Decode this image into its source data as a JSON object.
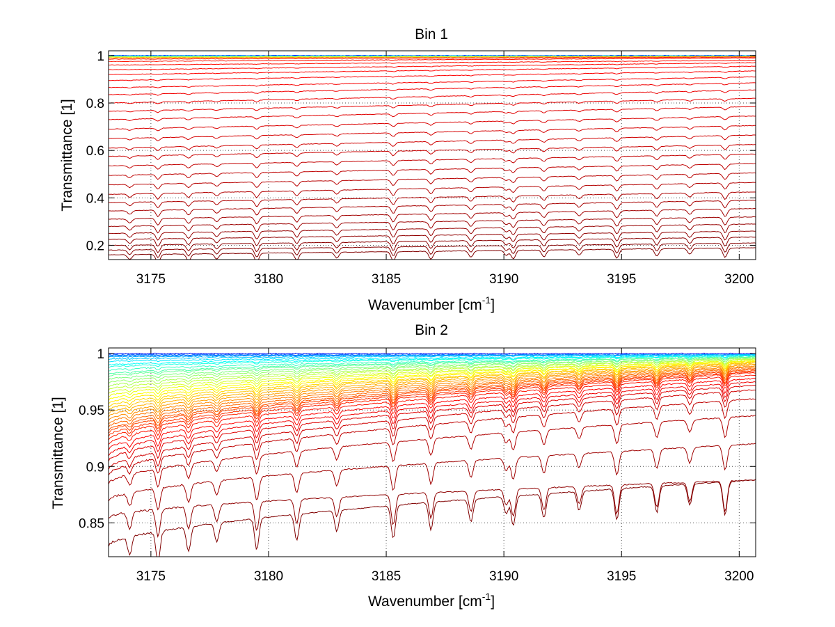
{
  "chart_data": [
    {
      "type": "line",
      "title": "Bin 1",
      "xlabel": "Wavenumber [cm",
      "xlabel_sup": "-1",
      "xlabel_end": "]",
      "ylabel": "Transmittance [1]",
      "xlim": [
        3173.2,
        3200.7
      ],
      "ylim": [
        0.14,
        1.02
      ],
      "xticks": [
        3175,
        3180,
        3185,
        3190,
        3195,
        3200
      ],
      "yticks": [
        0.2,
        0.4,
        0.6,
        0.8,
        1
      ],
      "ytick_labels": [
        "0.2",
        "0.4",
        "0.6",
        "0.8",
        "1"
      ],
      "grid": true,
      "n_series": 34,
      "series_start_end": [
        [
          1.0,
          1.0
        ],
        [
          0.999,
          0.999
        ],
        [
          0.997,
          0.998
        ],
        [
          0.995,
          0.997
        ],
        [
          0.993,
          0.996
        ],
        [
          0.99,
          0.995
        ],
        [
          0.985,
          0.993
        ],
        [
          0.975,
          0.99
        ],
        [
          0.96,
          0.98
        ],
        [
          0.94,
          0.97
        ],
        [
          0.92,
          0.955
        ],
        [
          0.895,
          0.935
        ],
        [
          0.865,
          0.91
        ],
        [
          0.835,
          0.885
        ],
        [
          0.8,
          0.855
        ],
        [
          0.765,
          0.82
        ],
        [
          0.73,
          0.785
        ],
        [
          0.69,
          0.745
        ],
        [
          0.65,
          0.705
        ],
        [
          0.61,
          0.665
        ],
        [
          0.575,
          0.625
        ],
        [
          0.535,
          0.585
        ],
        [
          0.495,
          0.545
        ],
        [
          0.455,
          0.505
        ],
        [
          0.415,
          0.465
        ],
        [
          0.38,
          0.425
        ],
        [
          0.345,
          0.39
        ],
        [
          0.31,
          0.355
        ],
        [
          0.28,
          0.32
        ],
        [
          0.25,
          0.29
        ],
        [
          0.225,
          0.26
        ],
        [
          0.2,
          0.235
        ],
        [
          0.18,
          0.21
        ],
        [
          0.16,
          0.19
        ]
      ],
      "absorption_lines": [
        3174.1,
        3175.3,
        3176.6,
        3177.8,
        3179.5,
        3181.2,
        3182.9,
        3185.3,
        3186.9,
        3188.6,
        3190.1,
        3190.4,
        3191.7,
        3193.2,
        3194.8,
        3196.5,
        3197.9,
        3199.4
      ],
      "colormap": "jet"
    },
    {
      "type": "line",
      "title": "Bin 2",
      "xlabel": "Wavenumber [cm",
      "xlabel_sup": "-1",
      "xlabel_end": "]",
      "ylabel": "Transmittance [1]",
      "xlim": [
        3173.2,
        3200.7
      ],
      "ylim": [
        0.82,
        1.005
      ],
      "xticks": [
        3175,
        3180,
        3185,
        3190,
        3195,
        3200
      ],
      "yticks": [
        0.85,
        0.9,
        0.95,
        1
      ],
      "ytick_labels": [
        "0.85",
        "0.9",
        "0.95",
        "1"
      ],
      "grid": true,
      "n_series": 40,
      "series_start_end": [
        [
          1.0,
          1.0
        ],
        [
          0.999,
          0.999
        ],
        [
          0.998,
          0.999
        ],
        [
          0.997,
          0.999
        ],
        [
          0.995,
          0.999
        ],
        [
          0.993,
          0.998
        ],
        [
          0.99,
          0.998
        ],
        [
          0.988,
          0.998
        ],
        [
          0.985,
          0.997
        ],
        [
          0.982,
          0.997
        ],
        [
          0.98,
          0.997
        ],
        [
          0.977,
          0.996
        ],
        [
          0.974,
          0.996
        ],
        [
          0.971,
          0.995
        ],
        [
          0.968,
          0.995
        ],
        [
          0.965,
          0.994
        ],
        [
          0.962,
          0.994
        ],
        [
          0.959,
          0.993
        ],
        [
          0.956,
          0.993
        ],
        [
          0.953,
          0.992
        ],
        [
          0.95,
          0.992
        ],
        [
          0.947,
          0.991
        ],
        [
          0.944,
          0.99
        ],
        [
          0.941,
          0.989
        ],
        [
          0.938,
          0.988
        ],
        [
          0.935,
          0.987
        ],
        [
          0.932,
          0.986
        ],
        [
          0.93,
          0.985
        ],
        [
          0.927,
          0.984
        ],
        [
          0.924,
          0.983
        ],
        [
          0.92,
          0.981
        ],
        [
          0.915,
          0.978
        ],
        [
          0.91,
          0.975
        ],
        [
          0.905,
          0.972
        ],
        [
          0.898,
          0.968
        ],
        [
          0.893,
          0.96
        ],
        [
          0.885,
          0.945
        ],
        [
          0.87,
          0.92
        ],
        [
          0.855,
          0.888
        ],
        [
          0.83,
          0.888
        ]
      ],
      "absorption_lines": [
        3174.1,
        3175.3,
        3176.6,
        3177.8,
        3179.5,
        3181.2,
        3182.9,
        3185.3,
        3186.9,
        3188.6,
        3190.1,
        3190.4,
        3191.7,
        3193.2,
        3194.8,
        3196.5,
        3197.9,
        3199.4
      ],
      "colormap": "jet"
    }
  ]
}
